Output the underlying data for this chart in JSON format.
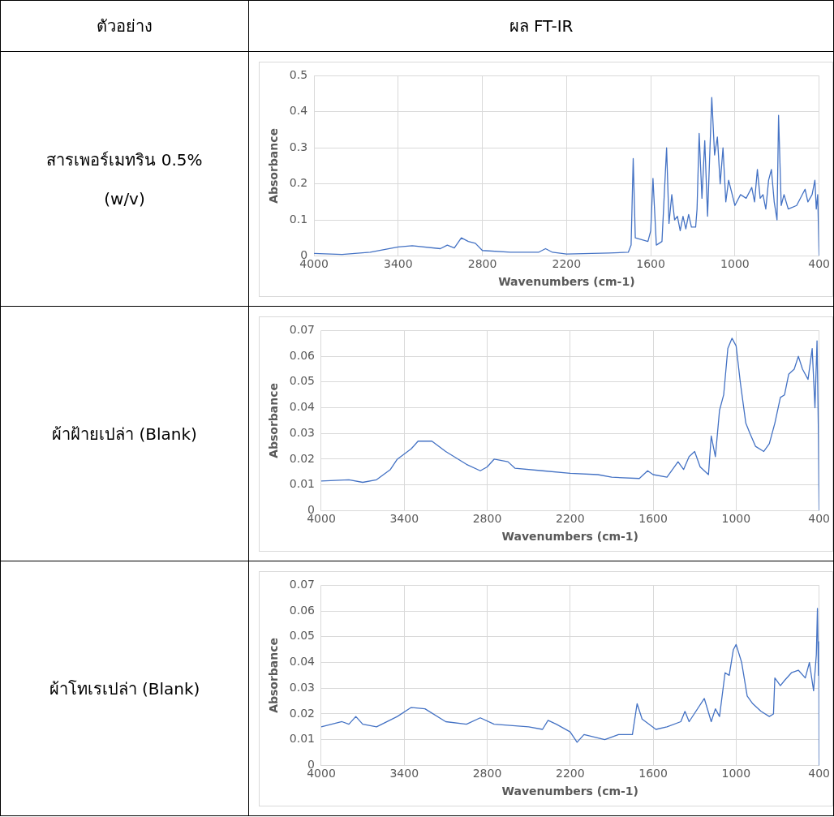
{
  "chart_data": [
    {
      "type": "line",
      "xlabel": "Wavenumbers (cm-1)",
      "ylabel": "Absorbance",
      "color": "#4472c4",
      "grid": true,
      "marker": "none",
      "line_style": "solid",
      "annotations": [
        "ตัวอย่าง",
        "ผล FT-IR",
        "สารเพอร์เมทริน 0.5% (w/v)"
      ],
      "xlim": [
        4000,
        400
      ],
      "xticks": [
        4000,
        3400,
        2800,
        2200,
        1600,
        1000,
        400
      ],
      "ylim": [
        0,
        0.5
      ],
      "yticks": [
        0,
        0.1,
        0.2,
        0.3,
        0.4,
        0.5
      ],
      "x": [
        4000,
        3800,
        3600,
        3400,
        3300,
        3100,
        3050,
        3000,
        2950,
        2900,
        2850,
        2800,
        2600,
        2400,
        2350,
        2300,
        2200,
        1900,
        1760,
        1740,
        1725,
        1710,
        1620,
        1600,
        1584,
        1560,
        1520,
        1487,
        1470,
        1450,
        1430,
        1410,
        1390,
        1370,
        1350,
        1330,
        1310,
        1280,
        1270,
        1255,
        1235,
        1215,
        1195,
        1165,
        1145,
        1125,
        1105,
        1085,
        1065,
        1045,
        1000,
        960,
        920,
        880,
        860,
        840,
        820,
        800,
        780,
        760,
        740,
        720,
        700,
        689,
        670,
        650,
        620,
        560,
        500,
        480,
        450,
        430,
        420,
        410,
        400
      ],
      "values": [
        0.007,
        0.004,
        0.01,
        0.025,
        0.028,
        0.02,
        0.03,
        0.022,
        0.05,
        0.04,
        0.035,
        0.015,
        0.01,
        0.01,
        0.02,
        0.01,
        0.005,
        0.008,
        0.01,
        0.03,
        0.27,
        0.05,
        0.04,
        0.07,
        0.215,
        0.03,
        0.04,
        0.3,
        0.09,
        0.17,
        0.1,
        0.11,
        0.07,
        0.11,
        0.075,
        0.115,
        0.08,
        0.08,
        0.13,
        0.34,
        0.16,
        0.32,
        0.11,
        0.44,
        0.28,
        0.33,
        0.2,
        0.3,
        0.15,
        0.21,
        0.14,
        0.17,
        0.16,
        0.19,
        0.15,
        0.24,
        0.16,
        0.17,
        0.13,
        0.21,
        0.24,
        0.15,
        0.1,
        0.39,
        0.14,
        0.17,
        0.13,
        0.14,
        0.185,
        0.15,
        0.17,
        0.21,
        0.13,
        0.17,
        0
      ]
    },
    {
      "type": "line",
      "xlabel": "Wavenumbers (cm-1)",
      "ylabel": "Absorbance",
      "color": "#4472c4",
      "grid": true,
      "marker": "none",
      "line_style": "solid",
      "annotations": [
        "ผ้าฝ้ายเปล่า (Blank)"
      ],
      "xlim": [
        4000,
        400
      ],
      "xticks": [
        4000,
        3400,
        2800,
        2200,
        1600,
        1000,
        400
      ],
      "ylim": [
        0,
        0.07
      ],
      "yticks": [
        0,
        0.01,
        0.02,
        0.03,
        0.04,
        0.05,
        0.06,
        0.07
      ],
      "x": [
        4000,
        3800,
        3700,
        3600,
        3500,
        3450,
        3350,
        3300,
        3200,
        3100,
        2950,
        2850,
        2800,
        2750,
        2650,
        2600,
        2400,
        2200,
        2000,
        1900,
        1700,
        1640,
        1600,
        1500,
        1420,
        1380,
        1340,
        1300,
        1260,
        1200,
        1180,
        1150,
        1120,
        1090,
        1060,
        1030,
        1000,
        970,
        930,
        900,
        860,
        800,
        760,
        720,
        680,
        650,
        620,
        580,
        550,
        520,
        480,
        450,
        430,
        415,
        405,
        400
      ],
      "values": [
        0.0115,
        0.012,
        0.011,
        0.012,
        0.016,
        0.02,
        0.024,
        0.027,
        0.027,
        0.023,
        0.018,
        0.0155,
        0.017,
        0.02,
        0.019,
        0.0165,
        0.0155,
        0.0145,
        0.014,
        0.013,
        0.0125,
        0.0155,
        0.014,
        0.013,
        0.019,
        0.016,
        0.021,
        0.023,
        0.017,
        0.014,
        0.029,
        0.021,
        0.039,
        0.045,
        0.063,
        0.067,
        0.064,
        0.05,
        0.034,
        0.03,
        0.025,
        0.023,
        0.026,
        0.034,
        0.044,
        0.045,
        0.053,
        0.055,
        0.06,
        0.055,
        0.051,
        0.063,
        0.04,
        0.066,
        0.03,
        0
      ]
    },
    {
      "type": "line",
      "xlabel": "Wavenumbers (cm-1)",
      "ylabel": "Absorbance",
      "color": "#4472c4",
      "grid": true,
      "marker": "none",
      "line_style": "solid",
      "annotations": [
        "ผ้าโทเรเปล่า (Blank)"
      ],
      "xlim": [
        4000,
        400
      ],
      "xticks": [
        4000,
        3400,
        2800,
        2200,
        1600,
        1000,
        400
      ],
      "ylim": [
        0,
        0.07
      ],
      "yticks": [
        0,
        0.01,
        0.02,
        0.03,
        0.04,
        0.05,
        0.06,
        0.07
      ],
      "x": [
        4000,
        3850,
        3800,
        3750,
        3700,
        3600,
        3450,
        3350,
        3250,
        3100,
        2950,
        2850,
        2750,
        2500,
        2400,
        2360,
        2300,
        2200,
        2150,
        2100,
        1950,
        1850,
        1750,
        1716,
        1680,
        1580,
        1500,
        1400,
        1370,
        1340,
        1230,
        1180,
        1150,
        1120,
        1080,
        1050,
        1020,
        1000,
        960,
        920,
        880,
        820,
        760,
        730,
        720,
        680,
        650,
        600,
        550,
        500,
        470,
        440,
        420,
        412,
        405,
        402,
        400
      ],
      "values": [
        0.015,
        0.017,
        0.016,
        0.019,
        0.016,
        0.015,
        0.019,
        0.0225,
        0.022,
        0.017,
        0.016,
        0.0185,
        0.016,
        0.015,
        0.014,
        0.0175,
        0.016,
        0.013,
        0.009,
        0.012,
        0.01,
        0.012,
        0.012,
        0.024,
        0.018,
        0.014,
        0.015,
        0.017,
        0.021,
        0.017,
        0.026,
        0.017,
        0.022,
        0.019,
        0.036,
        0.035,
        0.045,
        0.047,
        0.04,
        0.027,
        0.024,
        0.021,
        0.019,
        0.02,
        0.034,
        0.031,
        0.033,
        0.036,
        0.037,
        0.034,
        0.04,
        0.029,
        0.043,
        0.061,
        0.035,
        0.048,
        0
      ]
    }
  ]
}
